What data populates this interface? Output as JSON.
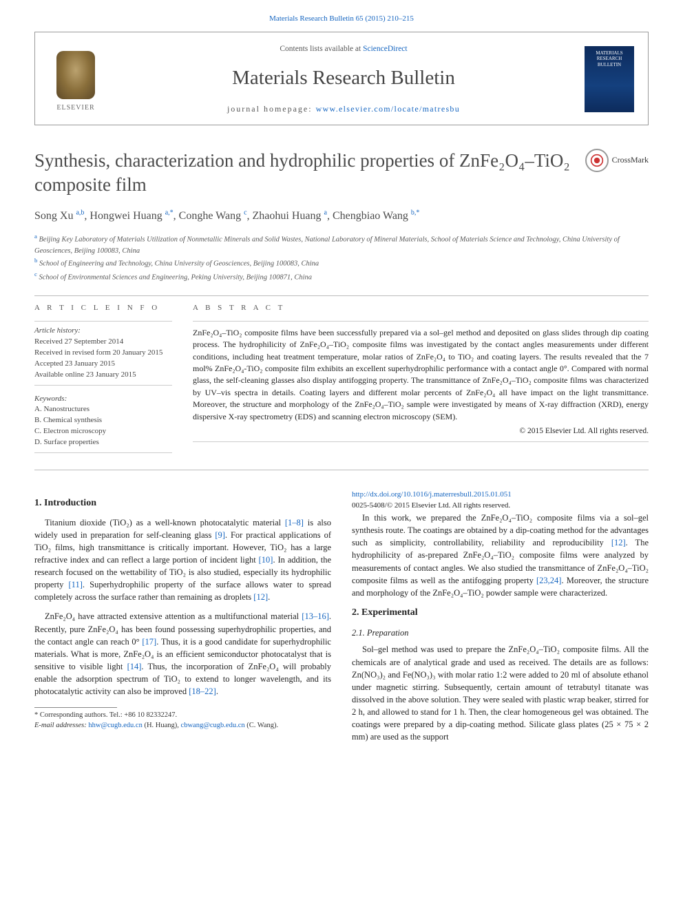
{
  "top_citation": "Materials Research Bulletin 65 (2015) 210–215",
  "header": {
    "contents_prefix": "Contents lists available at ",
    "contents_link": "ScienceDirect",
    "journal_title": "Materials Research Bulletin",
    "homepage_prefix": "journal homepage: ",
    "homepage_link": "www.elsevier.com/locate/matresbu",
    "elsevier_label": "ELSEVIER",
    "cover_line1": "MATERIALS",
    "cover_line2": "RESEARCH",
    "cover_line3": "BULLETIN"
  },
  "crossmark_label": "CrossMark",
  "title": "Synthesis, characterization and hydrophilic properties of ZnFe₂O₄–TiO₂ composite film",
  "authors_html": "Song Xu <sup>a,b</sup>, Hongwei Huang <sup>a,*</sup>, Conghe Wang <sup>c</sup>, Zhaohui Huang <sup>a</sup>, Chengbiao Wang <sup>b,*</sup>",
  "affiliations": [
    {
      "sup": "a",
      "text": "Beijing Key Laboratory of Materials Utilization of Nonmetallic Minerals and Solid Wastes, National Laboratory of Mineral Materials, School of Materials Science and Technology, China University of Geosciences, Beijing 100083, China"
    },
    {
      "sup": "b",
      "text": "School of Engineering and Technology, China University of Geosciences, Beijing 100083, China"
    },
    {
      "sup": "c",
      "text": "School of Environmental Sciences and Engineering, Peking University, Beijing 100871, China"
    }
  ],
  "info": {
    "heading": "A R T I C L E   I N F O",
    "history_label": "Article history:",
    "received": "Received 27 September 2014",
    "revised": "Received in revised form 20 January 2015",
    "accepted": "Accepted 23 January 2015",
    "online": "Available online 23 January 2015",
    "keywords_label": "Keywords:",
    "keywords": [
      "A. Nanostructures",
      "B. Chemical synthesis",
      "C. Electron microscopy",
      "D. Surface properties"
    ]
  },
  "abstract": {
    "heading": "A B S T R A C T",
    "text": "ZnFe₂O₄–TiO₂ composite films have been successfully prepared via a sol–gel method and deposited on glass slides through dip coating process. The hydrophilicity of ZnFe₂O₄–TiO₂ composite films was investigated by the contact angles measurements under different conditions, including heat treatment temperature, molar ratios of ZnFe₂O₄ to TiO₂ and coating layers. The results revealed that the 7 mol% ZnFe₂O₄-TiO₂ composite film exhibits an excellent superhydrophilic performance with a contact angle 0°. Compared with normal glass, the self-cleaning glasses also display antifogging property. The transmittance of ZnFe₂O₄–TiO₂ composite films was characterized by UV–vis spectra in details. Coating layers and different molar percents of ZnFe₂O₄ all have impact on the light transmittance. Moreover, the structure and morphology of the ZnFe₂O₄–TiO₂ sample were investigated by means of X-ray diffraction (XRD), energy dispersive X-ray spectrometry (EDS) and scanning electron microscopy (SEM).",
    "copyright": "© 2015 Elsevier Ltd. All rights reserved."
  },
  "sections": {
    "s1_heading": "1. Introduction",
    "s1_p1_a": "Titanium dioxide (TiO₂) as a well-known photocatalytic material ",
    "s1_p1_link1": "[1–8]",
    "s1_p1_b": " is also widely used in preparation for self-cleaning glass ",
    "s1_p1_link2": "[9]",
    "s1_p1_c": ". For practical applications of TiO₂ films, high transmittance is critically important. However, TiO₂ has a large refractive index and can reflect a large portion of incident light ",
    "s1_p1_link3": "[10]",
    "s1_p1_d": ". In addition, the research focused on the wettability of TiO₂ is also studied, especially its hydrophilic property ",
    "s1_p1_link4": "[11]",
    "s1_p1_e": ". Superhydrophilic property of the surface allows water to spread completely across the surface rather than remaining as droplets ",
    "s1_p1_link5": "[12]",
    "s1_p1_f": ".",
    "s1_p2_a": "ZnFe₂O₄ have attracted extensive attention as a multifunctional material ",
    "s1_p2_link1": "[13–16]",
    "s1_p2_b": ". Recently, pure ZnFe₂O₄ has been found possessing superhydrophilic properties, and the contact angle can reach 0° ",
    "s1_p2_link2": "[17]",
    "s1_p2_c": ". Thus, it is a good candidate for superhydrophilic materials. What is more, ZnFe₂O₄ is an efficient semiconductor photocatalyst that is sensitive to visible light ",
    "s1_p2_link3": "[14]",
    "s1_p2_d": ". Thus, the incorporation of ZnFe₂O₄ will probably enable the adsorption spectrum of TiO₂ to extend to longer wavelength, and its photocatalytic activity can also be improved ",
    "s1_p2_link4": "[18–22]",
    "s1_p2_e": ".",
    "s1_p3_a": "In this work, we prepared the ZnFe₂O₄–TiO₂ composite films via a sol–gel synthesis route. The coatings are obtained by a dip-coating method for the advantages such as simplicity, controllability, reliability and reproducibility ",
    "s1_p3_link1": "[12]",
    "s1_p3_b": ". The hydrophilicity of as-prepared ZnFe₂O₄–TiO₂ composite films were analyzed by measurements of contact angles. We also studied the transmittance of ZnFe₂O₄–TiO₂ composite films as well as the antifogging property ",
    "s1_p3_link2": "[23,24]",
    "s1_p3_c": ". Moreover, the structure and morphology of the ZnFe₂O₄–TiO₂ powder sample were characterized.",
    "s2_heading": "2. Experimental",
    "s21_heading": "2.1. Preparation",
    "s21_p1": "Sol–gel method was used to prepare the ZnFe₂O₄–TiO₂ composite films. All the chemicals are of analytical grade and used as received. The details are as follows: Zn(NO₃)₂ and Fe(NO₃)₃ with molar ratio 1:2 were added to 20 ml of absolute ethanol under magnetic stirring. Subsequently, certain amount of tetrabutyl titanate was dissolved in the above solution. They were sealed with plastic wrap beaker, stirred for 2 h, and allowed to stand for 1 h. Then, the clear homogeneous gel was obtained. The coatings were prepared by a dip-coating method. Silicate glass plates (25 × 75 × 2 mm) are used as the support"
  },
  "footnotes": {
    "corr": "* Corresponding authors. Tel.: +86 10 82332247.",
    "email_label": "E-mail addresses: ",
    "email1": "hhw@cugb.edu.cn",
    "email1_who": " (H. Huang), ",
    "email2": "cbwang@cugb.edu.cn",
    "email2_who": " (C. Wang)."
  },
  "doi": {
    "link": "http://dx.doi.org/10.1016/j.materresbull.2015.01.051",
    "issn": "0025-5408/© 2015 Elsevier Ltd. All rights reserved."
  },
  "colors": {
    "link": "#1565c0",
    "text": "#222222",
    "border": "#999999"
  }
}
